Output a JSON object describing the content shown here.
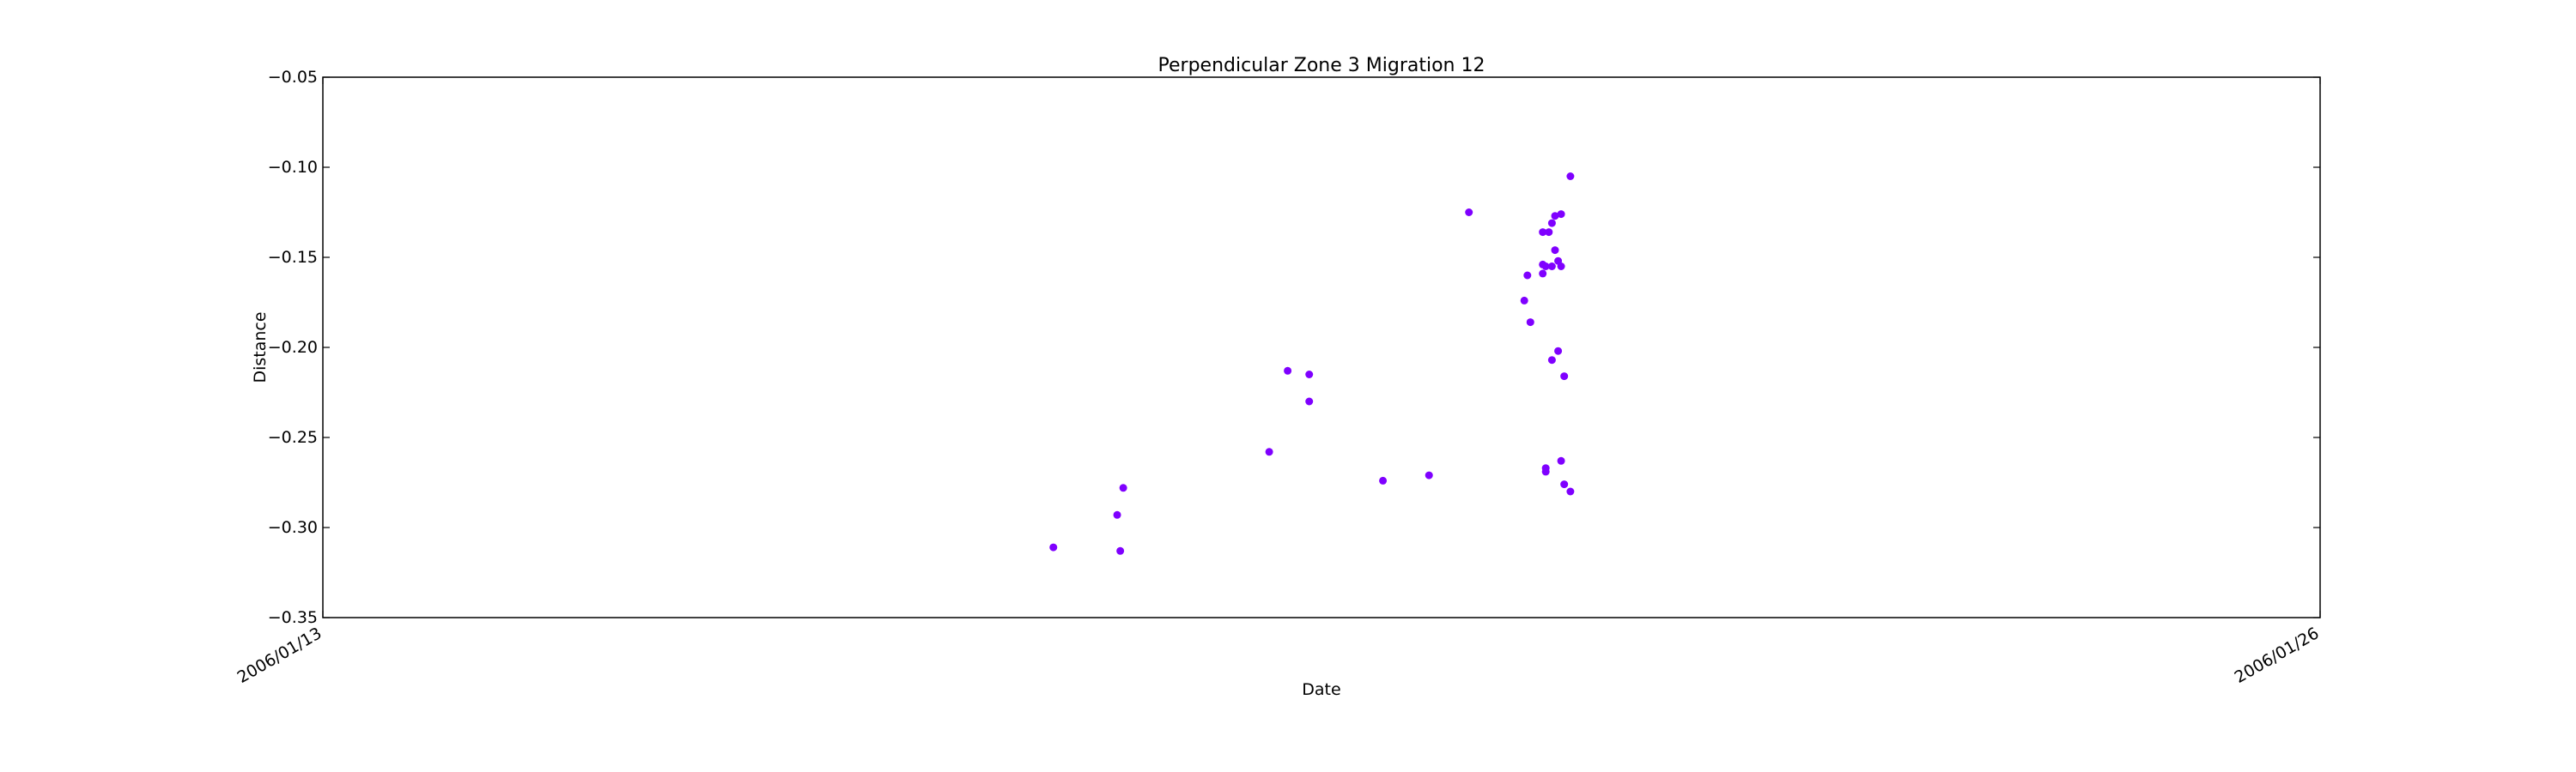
{
  "chart_data": {
    "type": "scatter",
    "title": "Perpendicular Zone 3 Migration 12",
    "xlabel": "Date",
    "ylabel": "Distance",
    "xlim": [
      "2006/01/13",
      "2006/01/26"
    ],
    "ylim": [
      -0.35,
      -0.05
    ],
    "x_tick_labels": [
      "2006/01/13",
      "2006/01/26"
    ],
    "y_ticks": [
      -0.35,
      -0.3,
      -0.25,
      -0.2,
      -0.15,
      -0.1,
      -0.05
    ],
    "y_tick_labels": [
      "−0.35",
      "−0.30",
      "−0.25",
      "−0.20",
      "−0.15",
      "−0.10",
      "−0.05"
    ],
    "grid": false,
    "marker_color": "#7f00ff",
    "series": [
      {
        "points": [
          {
            "x": "2006/01/17 18:07",
            "y": -0.311
          },
          {
            "x": "2006/01/18 04:05",
            "y": -0.293
          },
          {
            "x": "2006/01/18 04:34",
            "y": -0.313
          },
          {
            "x": "2006/01/18 05:02",
            "y": -0.278
          },
          {
            "x": "2006/01/19 03:50",
            "y": -0.258
          },
          {
            "x": "2006/01/19 06:43",
            "y": -0.213
          },
          {
            "x": "2006/01/19 10:05",
            "y": -0.215
          },
          {
            "x": "2006/01/19 10:05",
            "y": -0.23
          },
          {
            "x": "2006/01/19 21:36",
            "y": -0.274
          },
          {
            "x": "2006/01/20 04:48",
            "y": -0.271
          },
          {
            "x": "2006/01/20 11:02",
            "y": -0.125
          },
          {
            "x": "2006/01/20 19:41",
            "y": -0.174
          },
          {
            "x": "2006/01/20 20:10",
            "y": -0.16
          },
          {
            "x": "2006/01/20 20:38",
            "y": -0.186
          },
          {
            "x": "2006/01/20 22:34",
            "y": -0.136
          },
          {
            "x": "2006/01/20 22:34",
            "y": -0.154
          },
          {
            "x": "2006/01/20 22:34",
            "y": -0.159
          },
          {
            "x": "2006/01/20 23:02",
            "y": -0.155
          },
          {
            "x": "2006/01/20 23:02",
            "y": -0.267
          },
          {
            "x": "2006/01/20 23:02",
            "y": -0.269
          },
          {
            "x": "2006/01/20 23:31",
            "y": -0.136
          },
          {
            "x": "2006/01/21 00:00",
            "y": -0.207
          },
          {
            "x": "2006/01/21 00:00",
            "y": -0.155
          },
          {
            "x": "2006/01/21 00:00",
            "y": -0.131
          },
          {
            "x": "2006/01/21 00:29",
            "y": -0.127
          },
          {
            "x": "2006/01/21 00:29",
            "y": -0.146
          },
          {
            "x": "2006/01/21 00:58",
            "y": -0.152
          },
          {
            "x": "2006/01/21 00:58",
            "y": -0.202
          },
          {
            "x": "2006/01/21 01:26",
            "y": -0.126
          },
          {
            "x": "2006/01/21 01:26",
            "y": -0.155
          },
          {
            "x": "2006/01/21 01:26",
            "y": -0.263
          },
          {
            "x": "2006/01/21 01:55",
            "y": -0.216
          },
          {
            "x": "2006/01/21 01:55",
            "y": -0.276
          },
          {
            "x": "2006/01/21 02:53",
            "y": -0.105
          },
          {
            "x": "2006/01/21 02:53",
            "y": -0.28
          }
        ]
      }
    ]
  }
}
